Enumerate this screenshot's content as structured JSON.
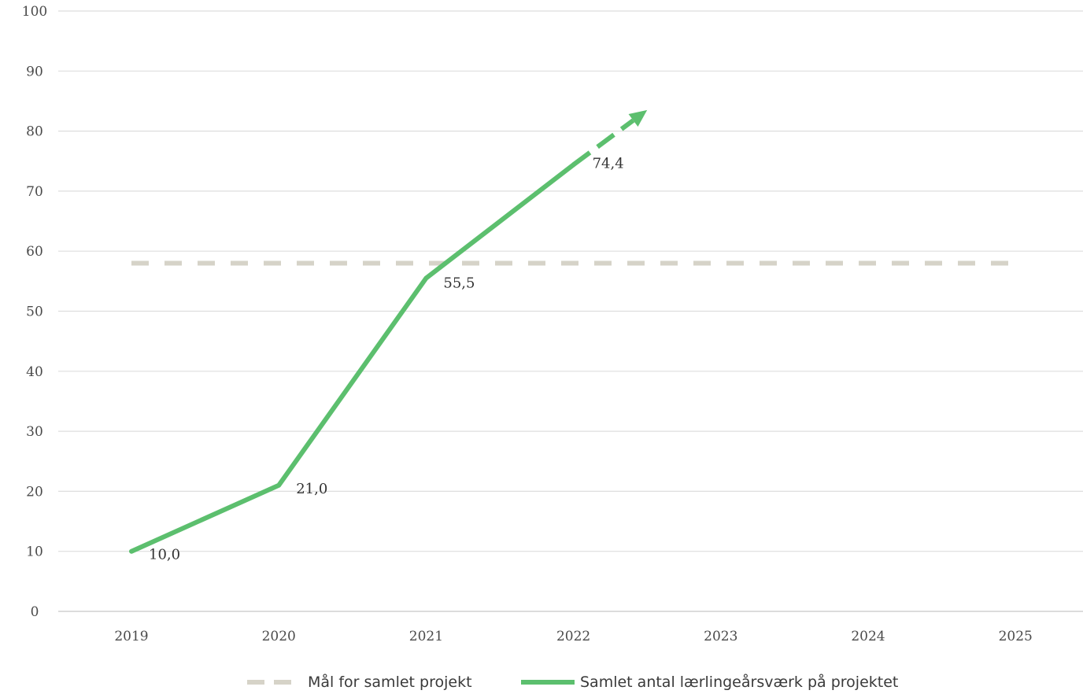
{
  "chart_data": {
    "type": "line",
    "title": "",
    "xlabel": "",
    "ylabel": "",
    "categories": [
      "2019",
      "2020",
      "2021",
      "2022",
      "2023",
      "2024",
      "2025"
    ],
    "ylim": [
      0,
      100
    ],
    "yticks": [
      0,
      10,
      20,
      30,
      40,
      50,
      60,
      70,
      80,
      90,
      100
    ],
    "grid": true,
    "legend_position": "bottom",
    "series": [
      {
        "name": "Mål for samlet projekt",
        "style": "dashed",
        "color": "#d6d3c8",
        "x": [
          "2019",
          "2025"
        ],
        "values": [
          58,
          58
        ]
      },
      {
        "name": "Samlet antal lærlingeårsværk på projektet",
        "style": "solid",
        "color": "#5cbf6e",
        "x": [
          "2019",
          "2020",
          "2021",
          "2022"
        ],
        "values": [
          10.0,
          21.0,
          55.5,
          74.4
        ],
        "labels": [
          "10,0",
          "21,0",
          "55,5",
          "74,4"
        ],
        "trend_arrow": {
          "from": [
            "2022",
            74.4
          ],
          "to": [
            "2022.5",
            83.5
          ],
          "style": "dashed-arrow"
        }
      }
    ]
  }
}
